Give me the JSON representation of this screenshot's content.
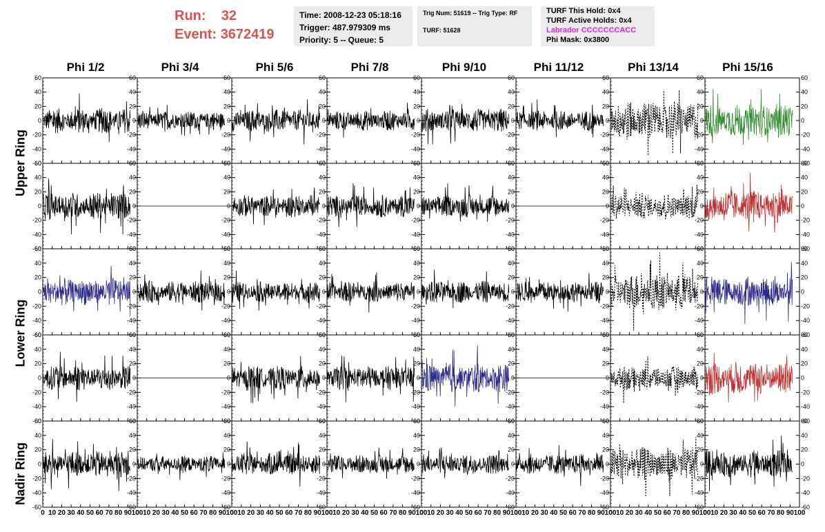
{
  "header": {
    "run_label": "Run:",
    "run_value": "32",
    "event_label": "Event:",
    "event_value": "3672419",
    "box1": [
      "Time: 2008-12-23 05:18:16",
      "Trigger: 487.979309 ms",
      "Priority: 5 -- Queue: 5"
    ],
    "box2": [
      "Trig Num: 51619 -- Trig Type: RF",
      "TURF: 51628"
    ],
    "box3": [
      "TURF This Hold: 0x4",
      "TURF Active Holds: 0x4",
      "Labrador CCCCCCCACC",
      "Phi Mask: 0x3800"
    ]
  },
  "colors": {
    "run_text": "#d9534f",
    "labrador": "#e020e0",
    "black": "#000000",
    "blue": "#2a2a8c",
    "green": "#2e8b2e",
    "red": "#c03030"
  },
  "columns": [
    "Phi 1/2",
    "Phi 3/4",
    "Phi 5/6",
    "Phi 7/8",
    "Phi 9/10",
    "Phi 11/12",
    "Phi 13/14",
    "Phi 15/16"
  ],
  "rings": [
    "Upper Ring",
    "Lower Ring",
    "Nadir Ring"
  ],
  "chart_data": {
    "type": "line",
    "grid": {
      "rows": 5,
      "cols": 8
    },
    "ylim": [
      -60,
      60
    ],
    "xlim": [
      0,
      100
    ],
    "y_ticks": [
      -60,
      -40,
      -20,
      0,
      20,
      40,
      60
    ],
    "x_ticks": [
      0,
      10,
      20,
      30,
      40,
      50,
      60,
      70,
      80,
      90,
      100
    ],
    "y_tick_labels": [
      "-60",
      "-40",
      "-20",
      "0",
      "20",
      "40",
      "60"
    ],
    "x_tick_labels": [
      "0",
      "10",
      "20",
      "30",
      "40",
      "50",
      "60",
      "70",
      "80",
      "90",
      "100"
    ],
    "panels": [
      [
        {
          "style": "black",
          "amp": 14
        },
        {
          "style": "black",
          "amp": 10
        },
        {
          "style": "black",
          "amp": 12
        },
        {
          "style": "black",
          "amp": 11
        },
        {
          "style": "black",
          "amp": 13
        },
        {
          "style": "black",
          "amp": 11
        },
        {
          "style": "dashed",
          "amp": 22
        },
        {
          "style": "green",
          "amp": 18
        }
      ],
      [
        {
          "style": "black",
          "amp": 15
        },
        {
          "style": "flat",
          "amp": 0
        },
        {
          "style": "black",
          "amp": 12
        },
        {
          "style": "black",
          "amp": 12
        },
        {
          "style": "black",
          "amp": 12
        },
        {
          "style": "flat",
          "amp": 0
        },
        {
          "style": "dashed",
          "amp": 14
        },
        {
          "style": "red",
          "amp": 18
        }
      ],
      [
        {
          "style": "blue",
          "amp": 15
        },
        {
          "style": "black",
          "amp": 12
        },
        {
          "style": "black",
          "amp": 11
        },
        {
          "style": "black",
          "amp": 11
        },
        {
          "style": "black",
          "amp": 12
        },
        {
          "style": "black",
          "amp": 11
        },
        {
          "style": "dashed",
          "amp": 20
        },
        {
          "style": "blue",
          "amp": 16
        }
      ],
      [
        {
          "style": "black",
          "amp": 14
        },
        {
          "style": "flat",
          "amp": 0
        },
        {
          "style": "black",
          "amp": 13
        },
        {
          "style": "black",
          "amp": 13
        },
        {
          "style": "blue",
          "amp": 16
        },
        {
          "style": "flat",
          "amp": 0
        },
        {
          "style": "dashed",
          "amp": 13
        },
        {
          "style": "red",
          "amp": 18
        }
      ],
      [
        {
          "style": "black",
          "amp": 14
        },
        {
          "style": "black",
          "amp": 9
        },
        {
          "style": "black",
          "amp": 12
        },
        {
          "style": "black",
          "amp": 10
        },
        {
          "style": "black",
          "amp": 11
        },
        {
          "style": "black",
          "amp": 11
        },
        {
          "style": "dashed",
          "amp": 18
        },
        {
          "style": "black",
          "amp": 15
        }
      ]
    ]
  }
}
